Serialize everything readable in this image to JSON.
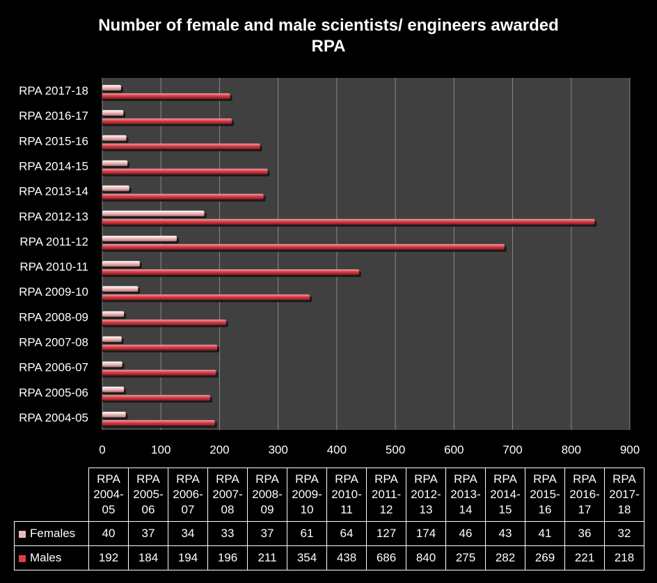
{
  "chart_data": {
    "type": "bar",
    "orientation": "horizontal",
    "title": [
      "Number of female and male scientists/ engineers awarded",
      "RPA"
    ],
    "categories": [
      "RPA 2004-05",
      "RPA 2005-06",
      "RPA 2006-07",
      "RPA 2007-08",
      "RPA 2008-09",
      "RPA 2009-10",
      "RPA 2010-11",
      "RPA 2011-12",
      "RPA 2012-13",
      "RPA 2013-14",
      "RPA 2014-15",
      "RPA 2015-16",
      "RPA 2016-17",
      "RPA 2017-18"
    ],
    "table_headers": [
      [
        "RPA",
        "2004-",
        "05"
      ],
      [
        "RPA",
        "2005-",
        "06"
      ],
      [
        "RPA",
        "2006-",
        "07"
      ],
      [
        "RPA",
        "2007-",
        "08"
      ],
      [
        "RPA",
        "2008-",
        "09"
      ],
      [
        "RPA",
        "2009-",
        "10"
      ],
      [
        "RPA",
        "2010-",
        "11"
      ],
      [
        "RPA",
        "2011-",
        "12"
      ],
      [
        "RPA",
        "2012-",
        "13"
      ],
      [
        "RPA",
        "2013-",
        "14"
      ],
      [
        "RPA",
        "2014-",
        "15"
      ],
      [
        "RPA",
        "2015-",
        "16"
      ],
      [
        "RPA",
        "2016-",
        "17"
      ],
      [
        "RPA",
        "2017-",
        "18"
      ]
    ],
    "series": [
      {
        "name": "Females",
        "color": "#f0b8b8",
        "values": [
          40,
          37,
          34,
          33,
          37,
          61,
          64,
          127,
          174,
          46,
          43,
          41,
          36,
          32
        ]
      },
      {
        "name": "Males",
        "color": "#d9404a",
        "values": [
          192,
          184,
          194,
          196,
          211,
          354,
          438,
          686,
          840,
          275,
          282,
          269,
          221,
          218
        ]
      }
    ],
    "xlim": [
      0,
      900
    ],
    "xticks": [
      0,
      100,
      200,
      300,
      400,
      500,
      600,
      700,
      800,
      900
    ],
    "grid": true,
    "plot_background": "#404040",
    "legend": "data table"
  }
}
